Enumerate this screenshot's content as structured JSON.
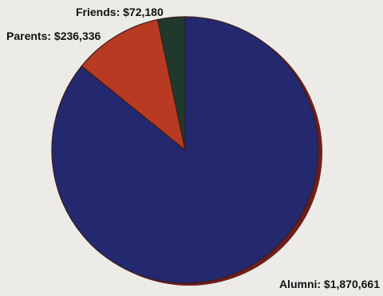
{
  "chart_data": {
    "type": "pie",
    "title": "",
    "slices": [
      {
        "category": "Alumni",
        "value": 1870661,
        "label": "Alumni: $1,870,661",
        "color": "#24286e"
      },
      {
        "category": "Parents",
        "value": 236336,
        "label": "Parents: $236,336",
        "color": "#b83a22"
      },
      {
        "category": "Friends",
        "value": 72180,
        "label": "Friends: $72,180",
        "color": "#1f3a2c"
      }
    ],
    "start_angle_deg": 0,
    "direction": "clockwise",
    "legend": "none",
    "labels": "outside"
  },
  "colors": {
    "background": "#ecebe7",
    "outline": "#3a1d18",
    "shadow": "#6e1e1a"
  }
}
